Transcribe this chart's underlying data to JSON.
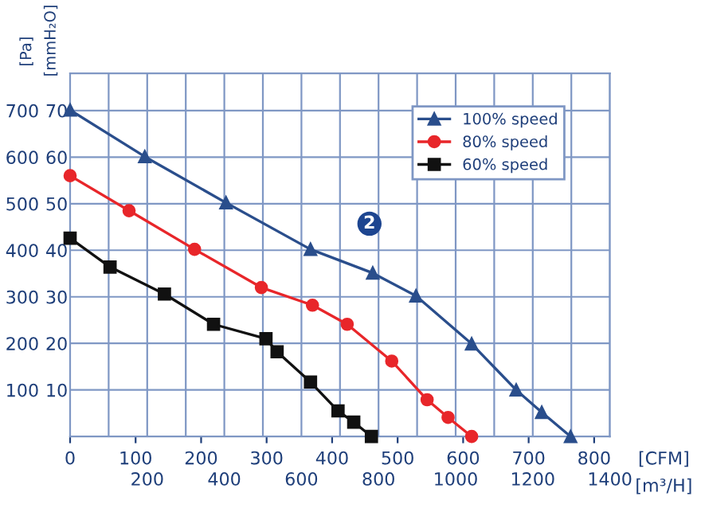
{
  "chart_data": {
    "type": "line",
    "xlabel": "[CFM]",
    "x2label": "[m³/H]",
    "ylabel": "[Pa]",
    "y2label": "[mmH₂O]",
    "xlim": [
      0,
      824
    ],
    "xticks": [
      0,
      100,
      200,
      300,
      400,
      500,
      600,
      700,
      800
    ],
    "x2lim": [
      0,
      1400
    ],
    "x2ticks": [
      {
        "value": 100,
        "label": null
      },
      200,
      {
        "value": 300,
        "label": null
      },
      400,
      {
        "value": 500,
        "label": null
      },
      600,
      {
        "value": 700,
        "label": null
      },
      800,
      {
        "value": 900,
        "label": null
      },
      1000,
      {
        "value": 1100,
        "label": null
      },
      1200,
      {
        "value": 1300,
        "label": null
      },
      1400
    ],
    "ylim": [
      0,
      780
    ],
    "yticks": [
      100,
      200,
      300,
      400,
      500,
      600,
      700
    ],
    "y2lim": [
      0,
      78
    ],
    "y2ticks": [
      10,
      20,
      30,
      40,
      50,
      60,
      70
    ],
    "grid": true,
    "legend": "top right",
    "line_style": "solid",
    "annotations": [
      {
        "text": "2",
        "x": 457,
        "y": 457
      }
    ],
    "series": [
      {
        "name": "100% speed",
        "color": "#2a4e8c",
        "marker": "triangle",
        "x": [
          0,
          114,
          238,
          367,
          462,
          528,
          613,
          681,
          720,
          764
        ],
        "values": [
          701,
          601,
          502,
          402,
          351,
          302,
          199,
          100,
          52,
          0
        ]
      },
      {
        "name": "80% speed",
        "color": "#e8262a",
        "marker": "circle",
        "x": [
          0,
          90,
          190,
          292,
          370,
          423,
          491,
          545,
          577,
          613
        ],
        "values": [
          560,
          485,
          402,
          320,
          282,
          241,
          162,
          79,
          41,
          0
        ]
      },
      {
        "name": "60% speed",
        "color": "#111111",
        "marker": "square",
        "x": [
          0,
          61,
          144,
          219,
          299,
          316,
          367,
          409,
          433,
          460
        ],
        "values": [
          426,
          364,
          306,
          241,
          210,
          182,
          117,
          55,
          31,
          0
        ]
      }
    ]
  }
}
